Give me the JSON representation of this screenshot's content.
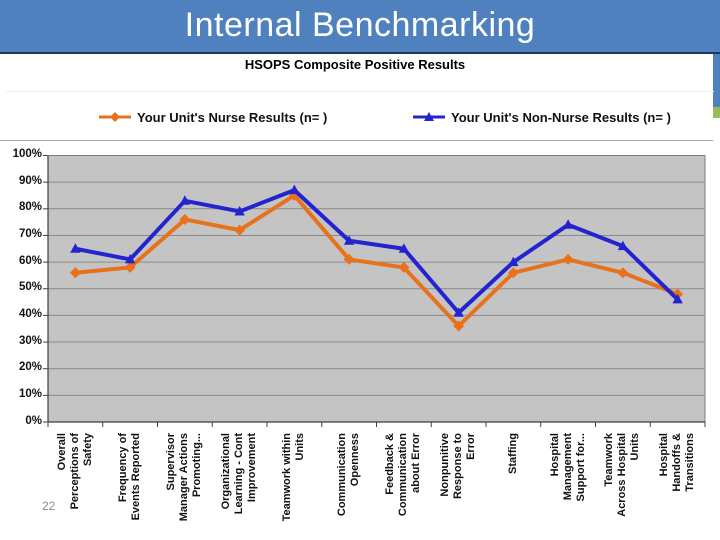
{
  "slide": {
    "title": "Internal Benchmarking",
    "page_number": "22"
  },
  "colors": {
    "banner_blue": "#4E81BD",
    "banner_border": "#17375E",
    "accent_green": "#9BBB59",
    "plot_background": "#C4C4C4",
    "gridline": "#8A8A8A",
    "axis": "#3F3F3F",
    "nurse_orange": "#E8721C",
    "non_nurse_blue": "#2424CF"
  },
  "chart_data": {
    "type": "line",
    "title": "HSOPS Composite Positive Results",
    "legend_position": "top",
    "grid": true,
    "ylim": [
      0,
      100
    ],
    "y_tick_step": 10,
    "y_ticks": [
      "0%",
      "10%",
      "20%",
      "30%",
      "40%",
      "50%",
      "60%",
      "70%",
      "80%",
      "90%",
      "100%"
    ],
    "categories": [
      "Overall\nPerceptions of\nSafety",
      "Frequency of\nEvents Reported",
      "Supervisor\nManager Actions\nPromoting...",
      "Organizational\nLearning - Cont\nImprovement",
      "Teamwork within\nUnits",
      "Communication\nOpenness",
      "Feedback &\nCommunication\nabout Error",
      "Nonpunitive\nResponse to\nError",
      "Staffing",
      "Hospital\nManagement\nSupport for...",
      "Teamwork\nAcross Hospital\nUnits",
      "Hospital\nHandoffs &\nTransitions"
    ],
    "series": [
      {
        "name": "Your Unit's Nurse Results (n= )",
        "marker": "diamond",
        "color": "#E8721C",
        "values": [
          56,
          58,
          76,
          72,
          85,
          61,
          58,
          36,
          56,
          61,
          56,
          48
        ]
      },
      {
        "name": "Your Unit's Non-Nurse Results (n= )",
        "marker": "triangle",
        "color": "#2424CF",
        "values": [
          65,
          61,
          83,
          79,
          87,
          68,
          65,
          41,
          60,
          74,
          66,
          46
        ]
      }
    ]
  }
}
